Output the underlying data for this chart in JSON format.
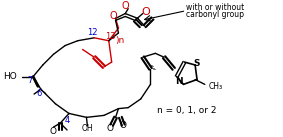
{
  "title": "",
  "bg_color": "#ffffff",
  "annotation_text_1": "with or without",
  "annotation_text_2": "carbonyl group",
  "n_label": "n = 0, 1, or 2",
  "label_12": "12",
  "label_13": "13",
  "label_7": "7",
  "label_6": "6",
  "label_4": "4",
  "label_n": ")n",
  "label_O_top": "O",
  "label_O_carbonyl": "O",
  "label_O_ring": "O",
  "label_O_ester1": "O",
  "label_HO": "HO",
  "label_OH": "OH",
  "label_S": "S",
  "label_N": "N",
  "blue_color": "#0000cc",
  "red_color": "#cc0000",
  "black_color": "#000000",
  "line_width": 1.0
}
